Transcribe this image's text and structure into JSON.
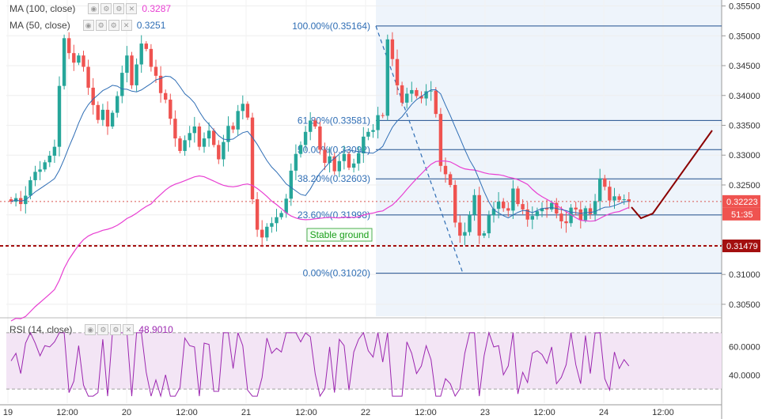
{
  "legend": {
    "ma100": {
      "label": "MA (100, close)",
      "value": "0.3287",
      "color": "#e83fd2"
    },
    "ma50": {
      "label": "MA (50, close)",
      "value": "0.3251",
      "color": "#2f6eb5"
    },
    "rsi": {
      "label": "RSI (14, close)",
      "value": "48.9010",
      "color": "#9c27b0"
    }
  },
  "icons": [
    "eye-icon",
    "gear-icon",
    "settings-icon",
    "close-icon"
  ],
  "annotation": {
    "stable_ground": "Stable ground"
  },
  "price_tags": {
    "last_price": "0.32223",
    "countdown": "51:35",
    "support": "0.31479"
  },
  "chart_data": [
    {
      "type": "candlestick",
      "price_ylim": [
        0.303,
        0.356
      ],
      "y_ticks": [
        "0.35500",
        "0.35000",
        "0.34500",
        "0.34000",
        "0.33500",
        "0.33000",
        "0.32500",
        "0.32000",
        "0.31500",
        "0.31000",
        "0.30500"
      ],
      "x_ticks": [
        "19",
        "12:00",
        "20",
        "12:00",
        "21",
        "12:00",
        "22",
        "12:00",
        "23",
        "12:00",
        "24",
        "12:00"
      ],
      "fibonacci": [
        {
          "label": "100.00%(0.35164)",
          "price": 0.35164
        },
        {
          "label": "61.80%(0.33581)",
          "price": 0.33581
        },
        {
          "label": "50.00%(0.33092)",
          "price": 0.33092
        },
        {
          "label": "38.20%(0.32603)",
          "price": 0.32603
        },
        {
          "label": "23.60%(0.31998)",
          "price": 0.31998
        },
        {
          "label": "0.00%(0.31020)",
          "price": 0.3102
        }
      ],
      "support_level": 0.31479,
      "last_price": 0.32223,
      "closes": [
        0.3222,
        0.3228,
        0.3218,
        0.3232,
        0.3258,
        0.3272,
        0.3276,
        0.3288,
        0.3299,
        0.3314,
        0.3416,
        0.3496,
        0.3471,
        0.3455,
        0.3467,
        0.3448,
        0.3413,
        0.3384,
        0.3359,
        0.3376,
        0.3348,
        0.3371,
        0.3399,
        0.3438,
        0.3467,
        0.3417,
        0.3452,
        0.3487,
        0.3478,
        0.3448,
        0.3433,
        0.3404,
        0.3393,
        0.3361,
        0.3328,
        0.3307,
        0.3325,
        0.3337,
        0.3348,
        0.3314,
        0.3328,
        0.3341,
        0.3317,
        0.3293,
        0.3322,
        0.3349,
        0.3343,
        0.3374,
        0.3386,
        0.3363,
        0.3226,
        0.3175,
        0.3162,
        0.318,
        0.3186,
        0.3196,
        0.3203,
        0.3227,
        0.3274,
        0.3302,
        0.3317,
        0.3339,
        0.3358,
        0.3348,
        0.3309,
        0.3287,
        0.3298,
        0.3273,
        0.329,
        0.3302,
        0.3279,
        0.3286,
        0.3303,
        0.3331,
        0.3339,
        0.3342,
        0.3367,
        0.3366,
        0.3494,
        0.3461,
        0.3417,
        0.3388,
        0.3403,
        0.3409,
        0.3399,
        0.3395,
        0.3407,
        0.3408,
        0.3369,
        0.3282,
        0.3268,
        0.325,
        0.3187,
        0.3165,
        0.3171,
        0.32,
        0.3233,
        0.3165,
        0.3169,
        0.3199,
        0.321,
        0.3222,
        0.3211,
        0.3207,
        0.3244,
        0.3218,
        0.3209,
        0.3192,
        0.3198,
        0.3206,
        0.3211,
        0.3209,
        0.322,
        0.3202,
        0.3189,
        0.3186,
        0.3212,
        0.3209,
        0.3191,
        0.3211,
        0.3201,
        0.3223,
        0.3261,
        0.3247,
        0.3224,
        0.3231,
        0.3225,
        0.3226,
        0.3222
      ],
      "ma_series": [
        "ma100",
        "ma50"
      ],
      "projection": "down-then-up arrow"
    },
    {
      "type": "line",
      "title": "RSI (14, close)",
      "ylim": [
        20,
        80
      ],
      "y_ticks": [
        "60.0000",
        "40.0000"
      ],
      "band": [
        30,
        70
      ],
      "last_value": 48.901
    }
  ]
}
